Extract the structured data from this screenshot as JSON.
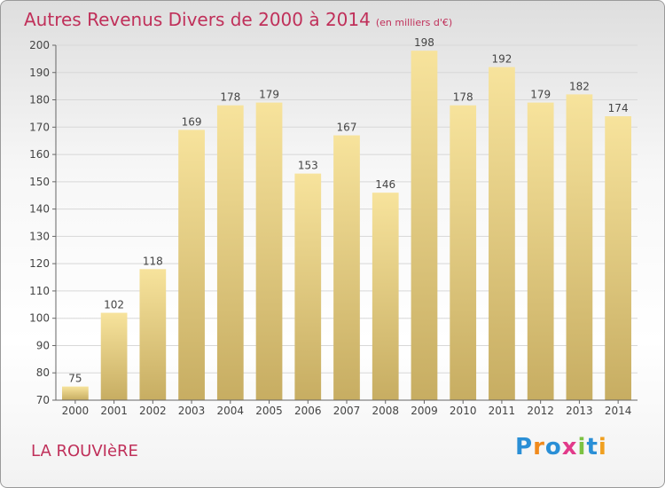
{
  "title": "Autres Revenus Divers de 2000 à 2014",
  "title_unit": "(en milliers d'€)",
  "location": "LA ROUVIèRE",
  "brand": {
    "letters": [
      "P",
      "r",
      "o",
      "x",
      "i",
      "t",
      "i"
    ],
    "colors": [
      "#2a8fd6",
      "#f08a1c",
      "#2a8fd6",
      "#e23a8a",
      "#7cc242",
      "#2a8fd6",
      "#f0a020"
    ]
  },
  "colors": {
    "title": "#c0305a",
    "bar_top": "#f7e39c",
    "bar_bottom": "#c7ad62",
    "grid": "#d8d8d8",
    "axis": "#666666",
    "label": "#444444"
  },
  "chart_data": {
    "type": "bar",
    "categories": [
      "2000",
      "2001",
      "2002",
      "2003",
      "2004",
      "2005",
      "2006",
      "2007",
      "2008",
      "2009",
      "2010",
      "2011",
      "2012",
      "2013",
      "2014"
    ],
    "values": [
      75,
      102,
      118,
      169,
      178,
      179,
      153,
      167,
      146,
      198,
      178,
      192,
      179,
      182,
      174
    ],
    "title": "Autres Revenus Divers de 2000 à 2014",
    "xlabel": "",
    "ylabel": "",
    "ylim": [
      70,
      200
    ],
    "yticks": [
      70,
      80,
      90,
      100,
      110,
      120,
      130,
      140,
      150,
      160,
      170,
      180,
      190,
      200
    ],
    "grid": true,
    "data_labels": true
  }
}
